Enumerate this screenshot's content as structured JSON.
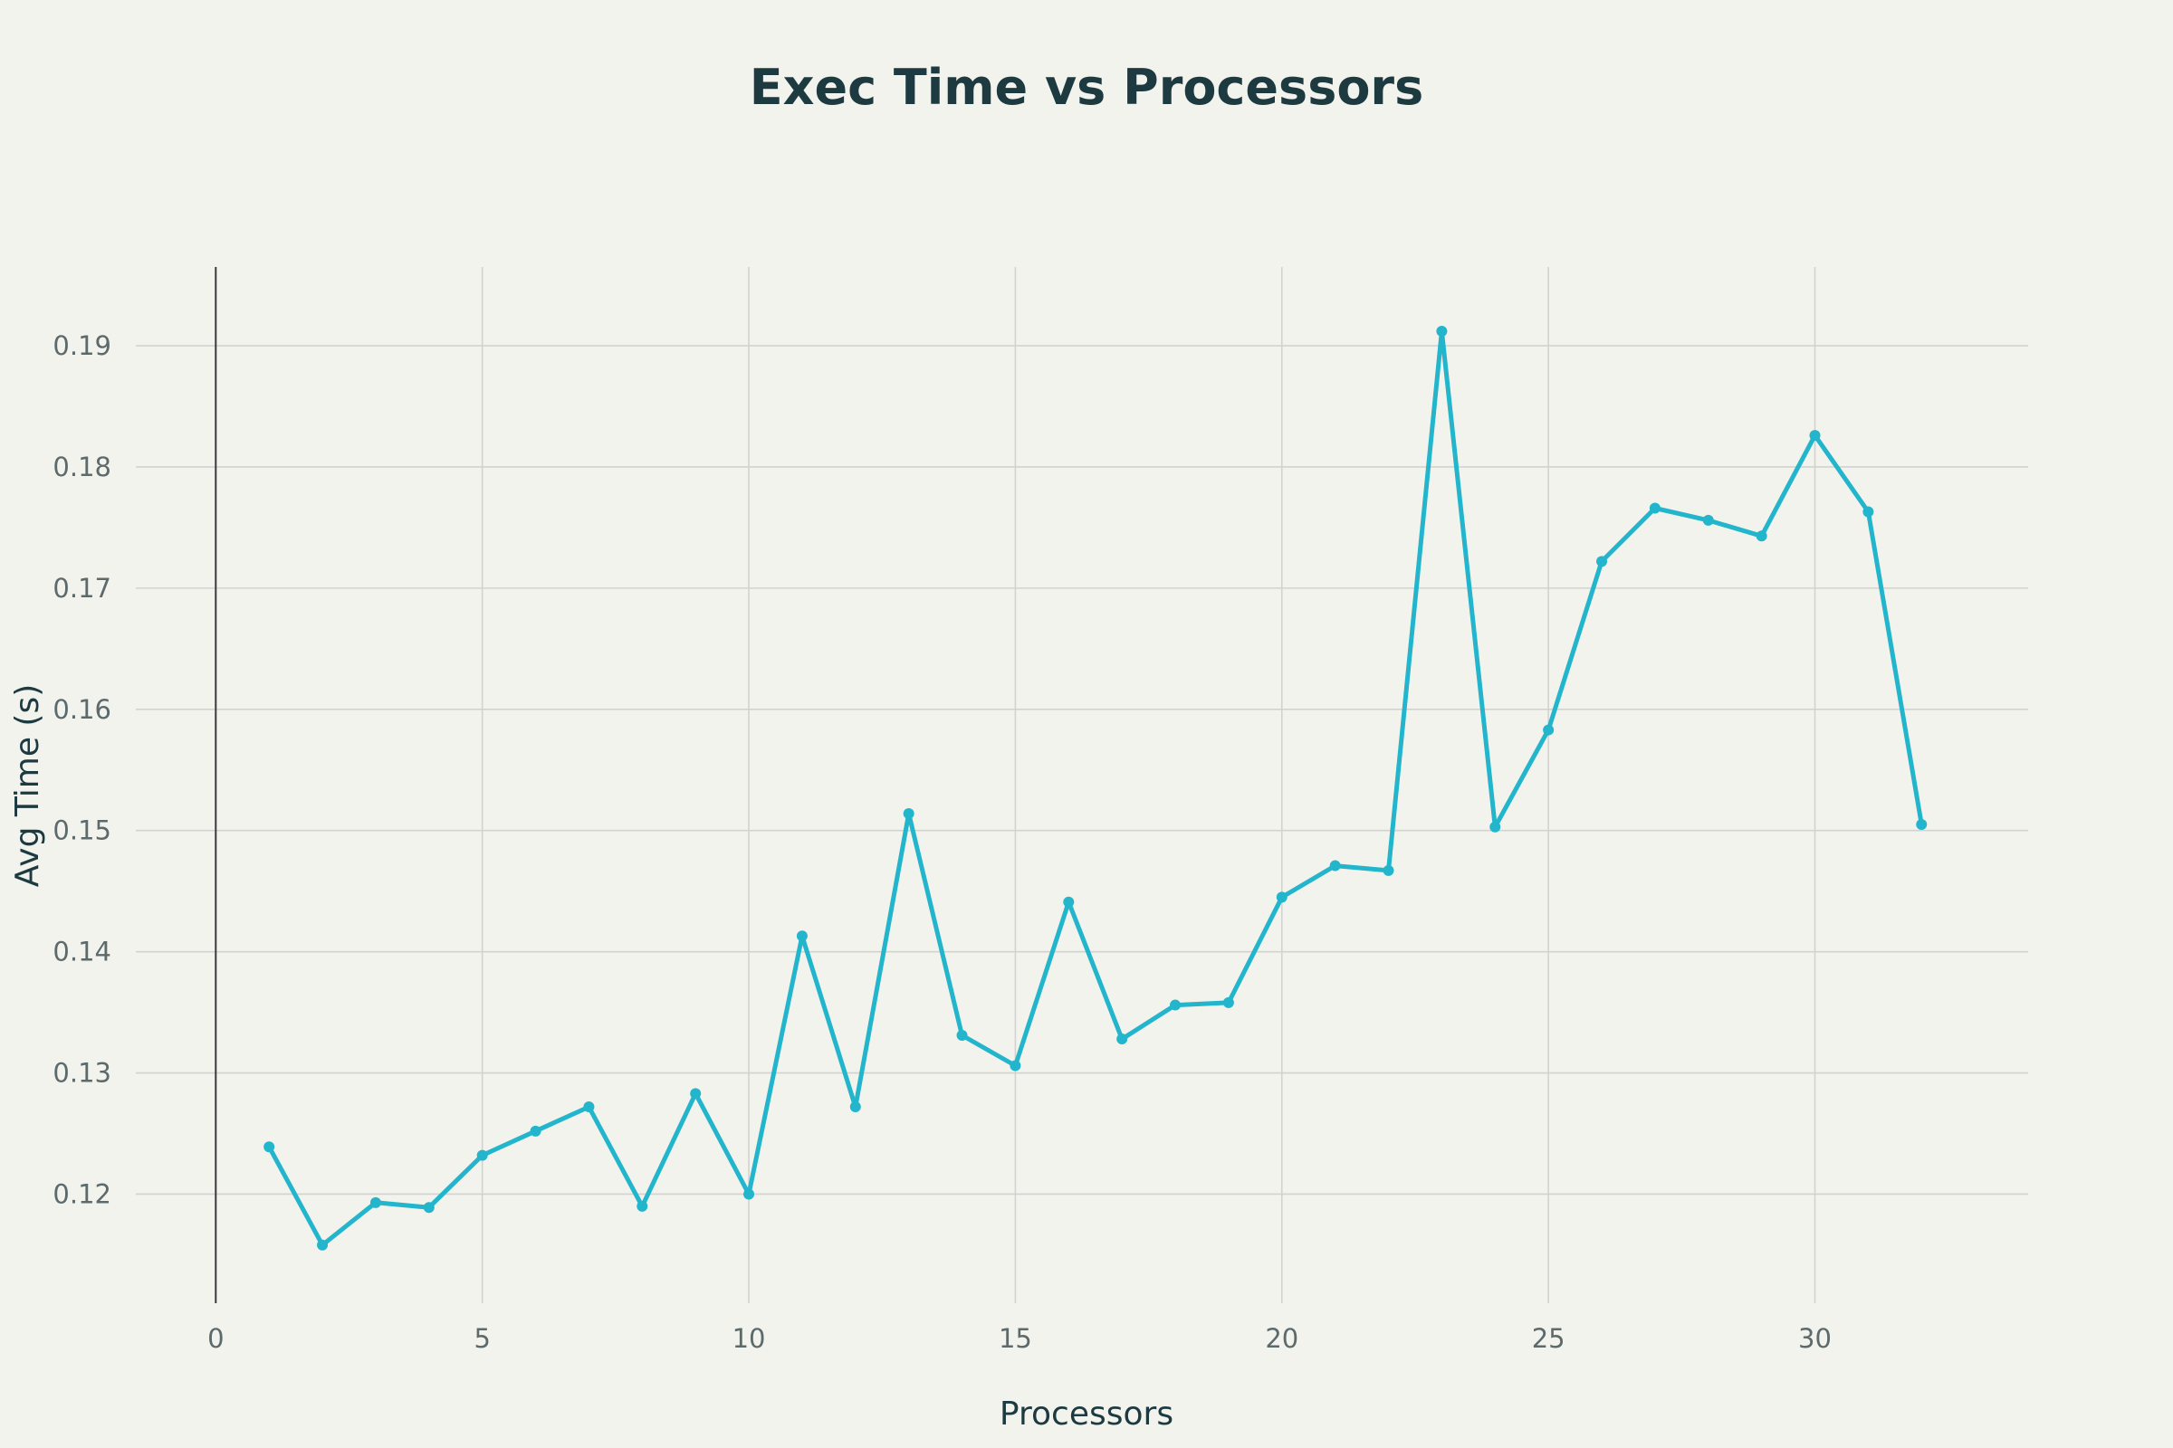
{
  "chart_data": {
    "type": "line",
    "title": "Exec Time vs Processors",
    "xlabel": "Processors",
    "ylabel": "Avg Time (s)",
    "xlim": [
      -1.5,
      34
    ],
    "ylim": [
      0.111,
      0.1965
    ],
    "xticks": [
      0,
      5,
      10,
      15,
      20,
      25,
      30
    ],
    "yticks": [
      0.12,
      0.13,
      0.14,
      0.15,
      0.16,
      0.17,
      0.18,
      0.19
    ],
    "xtick_labels": [
      "0",
      "5",
      "10",
      "15",
      "20",
      "25",
      "30"
    ],
    "ytick_labels": [
      "0.12",
      "0.13",
      "0.14",
      "0.15",
      "0.16",
      "0.17",
      "0.18",
      "0.19"
    ],
    "grid": true,
    "series": [
      {
        "color": "#22b5cc",
        "x": [
          1,
          2,
          3,
          4,
          5,
          6,
          7,
          8,
          9,
          10,
          11,
          12,
          13,
          14,
          15,
          16,
          17,
          18,
          19,
          20,
          21,
          22,
          23,
          24,
          25,
          26,
          27,
          28,
          29,
          30,
          31,
          32
        ],
        "values": [
          0.1239,
          0.1158,
          0.1193,
          0.1189,
          0.1232,
          0.1252,
          0.1272,
          0.119,
          0.1283,
          0.12,
          0.1413,
          0.1272,
          0.1514,
          0.1331,
          0.1306,
          0.1441,
          0.1328,
          0.1356,
          0.1358,
          0.1445,
          0.1471,
          0.1467,
          0.1912,
          0.1503,
          0.1583,
          0.1722,
          0.1766,
          0.1756,
          0.1743,
          0.1826,
          0.1763,
          0.1505
        ]
      }
    ]
  }
}
